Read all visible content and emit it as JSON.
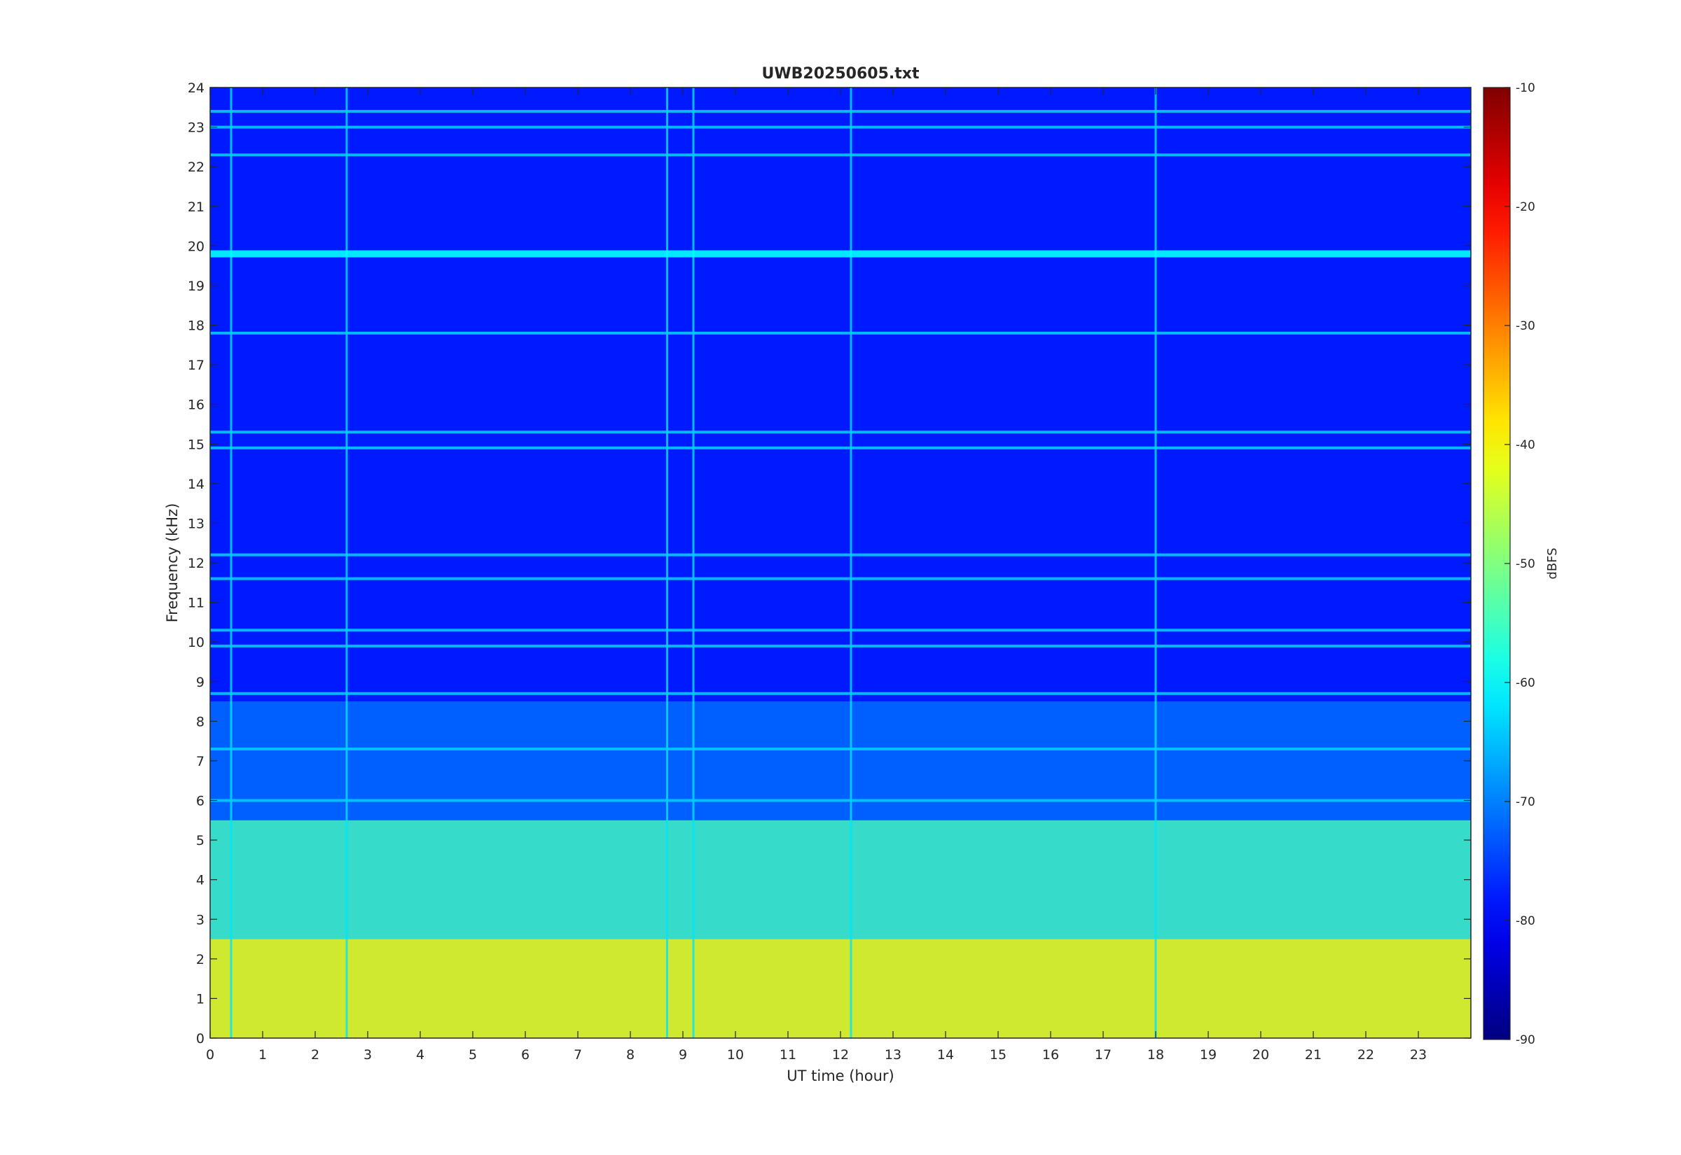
{
  "chart_data": {
    "type": "heatmap",
    "title": "UWB20250605.txt",
    "xlabel": "UT time (hour)",
    "ylabel": "Frequency (kHz)",
    "xlim": [
      0,
      24
    ],
    "ylim": [
      0,
      24
    ],
    "x_ticks": [
      0,
      1,
      2,
      3,
      4,
      5,
      6,
      7,
      8,
      9,
      10,
      11,
      12,
      13,
      14,
      15,
      16,
      17,
      18,
      19,
      20,
      21,
      22,
      23
    ],
    "y_ticks": [
      0,
      1,
      2,
      3,
      4,
      5,
      6,
      7,
      8,
      9,
      10,
      11,
      12,
      13,
      14,
      15,
      16,
      17,
      18,
      19,
      20,
      21,
      22,
      23,
      24
    ],
    "colorbar": {
      "label": "dBFS",
      "range": [
        -90,
        -10
      ],
      "ticks": [
        -90,
        -80,
        -70,
        -60,
        -50,
        -40,
        -30,
        -20,
        -10
      ],
      "colormap": "jet"
    },
    "features": {
      "background_level_dBFS": -78,
      "low_frequency_band": {
        "from_khz": 0,
        "to_khz": 2.5,
        "level_dBFS": -42
      },
      "mid_frequency_band": {
        "from_khz": 2.5,
        "to_khz": 5.5,
        "level_dBFS": -55
      },
      "horizontal_lines_khz": [
        19.8,
        17.8,
        23.4,
        23.0,
        22.3,
        15.3,
        14.9,
        12.2,
        11.6,
        10.3,
        9.9,
        8.7,
        7.3,
        6.0
      ],
      "strong_line_khz": 19.8,
      "vertical_events_hour": [
        0.4,
        2.6,
        8.7,
        9.2,
        12.2,
        18.0
      ]
    }
  }
}
